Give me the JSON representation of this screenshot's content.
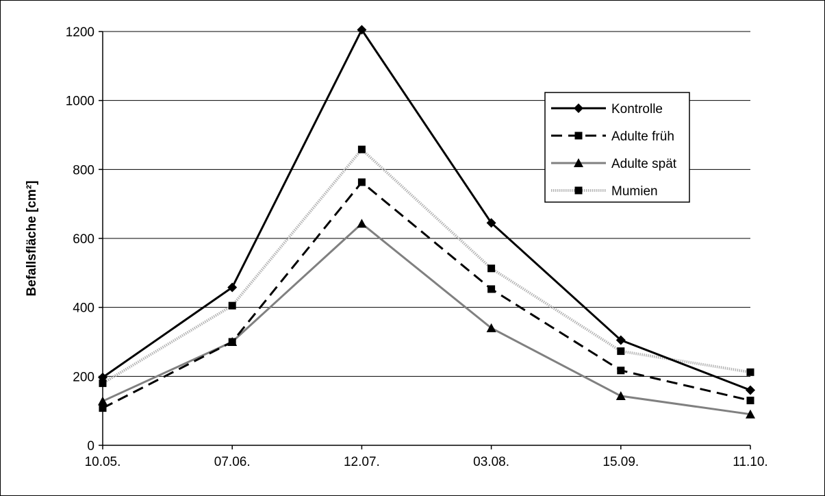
{
  "chart_data": {
    "type": "line",
    "title": "",
    "xlabel": "",
    "ylabel": "Befallsfläche [cm²]",
    "categories": [
      "10.05.",
      "07.06.",
      "12.07.",
      "03.08.",
      "15.09.",
      "11.10."
    ],
    "yticks": [
      "0",
      "200",
      "400",
      "600",
      "800",
      "1000",
      "1200"
    ],
    "ylim": [
      0,
      1200
    ],
    "grid": true,
    "legend_position": "top-right",
    "series": [
      {
        "name": "Kontrolle",
        "values": [
          197,
          458,
          1205,
          645,
          305,
          160
        ],
        "color": "#000000",
        "dash": "solid",
        "marker": "diamond"
      },
      {
        "name": "Adulte früh",
        "values": [
          108,
          300,
          763,
          453,
          217,
          130
        ],
        "color": "#000000",
        "dash": "dashed",
        "marker": "square"
      },
      {
        "name": "Adulte spät",
        "values": [
          128,
          300,
          643,
          340,
          143,
          90
        ],
        "color": "#808080",
        "dash": "solid",
        "marker": "triangle"
      },
      {
        "name": "Mumien",
        "values": [
          180,
          405,
          858,
          513,
          273,
          212
        ],
        "color": "#b4b4b4",
        "dash": "dotted",
        "marker": "square"
      }
    ]
  }
}
